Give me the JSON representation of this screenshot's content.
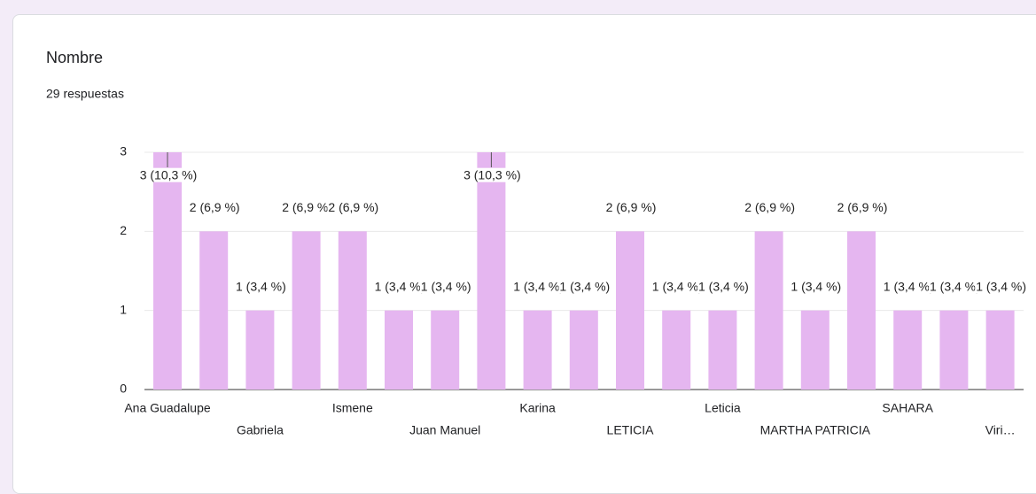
{
  "chart_data": {
    "type": "bar",
    "title": "Nombre",
    "subtitle": "29 respuestas",
    "categories": [
      "Ana Guadalupe",
      null,
      "Gabriela",
      null,
      "Ismene",
      null,
      "Juan Manuel",
      null,
      "Karina",
      null,
      "LETICIA",
      null,
      "Leticia",
      null,
      "MARTHA PATRICIA",
      null,
      "SAHARA",
      null,
      "Viri…"
    ],
    "values": [
      3,
      2,
      1,
      2,
      2,
      1,
      1,
      3,
      1,
      1,
      2,
      1,
      1,
      2,
      1,
      2,
      1,
      1,
      1
    ],
    "value_labels": [
      "3 (10,3 %)",
      "2 (6,9 %)",
      "1 (3,4 %)",
      "2 (6,9 %)",
      "2 (6,9 %)",
      "1 (3,4 %)",
      "1 (3,4 %)",
      "3 (10,3 %)",
      "1 (3,4 %)",
      "1 (3,4 %)",
      "2 (6,9 %)",
      "1 (3,4 %)",
      "1 (3,4 %)",
      "2 (6,9 %)",
      "1 (3,4 %)",
      "2 (6,9 %)",
      "1 (3,4 %)",
      "1 (3,4 %)",
      "1 (3,4 %)"
    ],
    "color": "#e5b6f0",
    "ylim": [
      0,
      3
    ],
    "yticks": [
      0,
      1,
      2,
      3
    ],
    "grid": true
  }
}
